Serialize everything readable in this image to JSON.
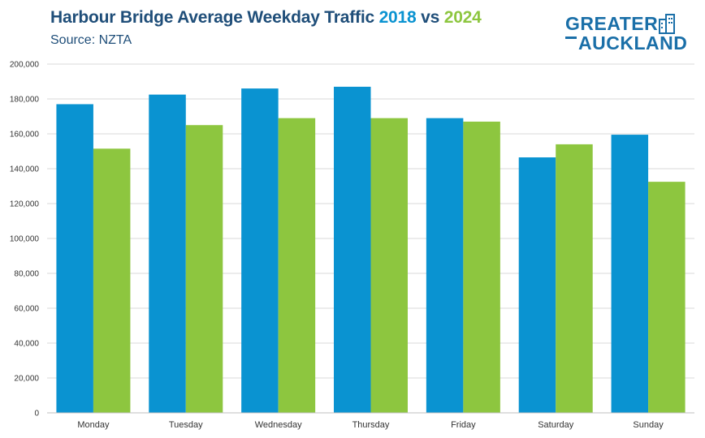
{
  "header": {
    "title_prefix": "Harbour Bridge Average Weekday Traffic ",
    "year_a": "2018",
    "vs": " vs ",
    "year_b": "2024",
    "subtitle": "Source: NZTA"
  },
  "logo": {
    "line1": "GREATER",
    "line2": "AUCKLAND",
    "icon": "city-buildings-icon"
  },
  "colors": {
    "series_2018": "#0a93d1",
    "series_2024": "#8dc63f",
    "title": "#1f4e79",
    "gridline": "#d9d9d9"
  },
  "chart_data": {
    "type": "bar",
    "title": "Harbour Bridge Average Weekday Traffic 2018 vs 2024",
    "subtitle": "Source: NZTA",
    "xlabel": "",
    "ylabel": "",
    "categories": [
      "Monday",
      "Tuesday",
      "Wednesday",
      "Thursday",
      "Friday",
      "Saturday",
      "Sunday"
    ],
    "series": [
      {
        "name": "2018",
        "values": [
          177000,
          182500,
          186000,
          187000,
          169000,
          146500,
          159500
        ]
      },
      {
        "name": "2024",
        "values": [
          151500,
          165000,
          169000,
          169000,
          167000,
          154000,
          132500
        ]
      }
    ],
    "ylim": [
      0,
      200000
    ],
    "yticks": [
      0,
      20000,
      40000,
      60000,
      80000,
      100000,
      120000,
      140000,
      160000,
      180000,
      200000
    ],
    "ytick_labels": [
      "0",
      "20,000",
      "40,000",
      "60,000",
      "80,000",
      "100,000",
      "120,000",
      "140,000",
      "160,000",
      "180,000",
      "200,000"
    ],
    "grid": true,
    "legend": "none"
  }
}
